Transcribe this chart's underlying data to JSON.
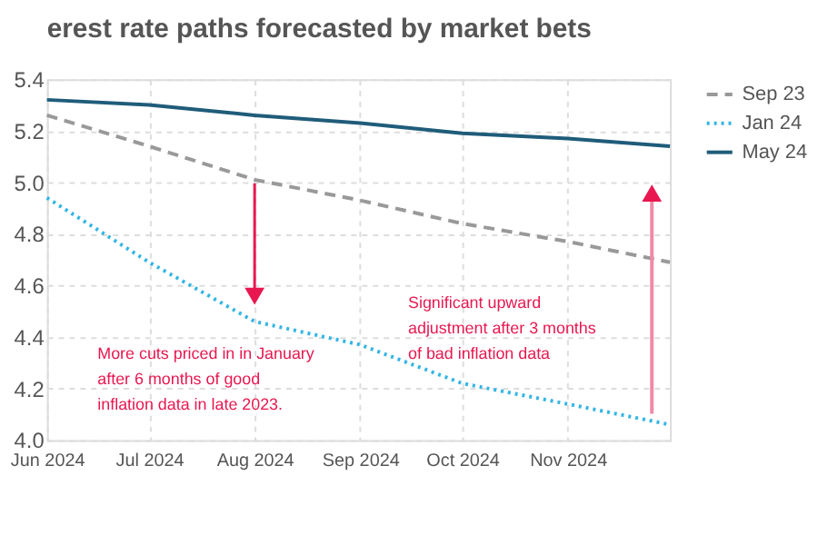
{
  "chart_data": {
    "type": "line",
    "title": "erest rate paths forecasted by market bets",
    "x": [
      "2024-06",
      "2024-07",
      "2024-08",
      "2024-09",
      "2024-10",
      "2024-11",
      "2024-12"
    ],
    "series": [
      {
        "name": "Sep 23",
        "color": "#999999",
        "line_style": "dashed",
        "values": [
          5.26,
          5.14,
          5.01,
          4.93,
          4.84,
          4.77,
          4.69
        ]
      },
      {
        "name": "Jan 24",
        "color": "#33b5e5",
        "line_style": "dotted",
        "values": [
          4.94,
          4.69,
          4.46,
          4.37,
          4.22,
          4.14,
          4.06
        ]
      },
      {
        "name": "May 24",
        "color": "#1f5c7a",
        "line_style": "solid",
        "values": [
          5.32,
          5.3,
          5.26,
          5.23,
          5.19,
          5.17,
          5.14
        ]
      }
    ],
    "xlim": [
      "2024-06",
      "2024-12"
    ],
    "xticks": [
      {
        "value": "2024-06",
        "label": "Jun 2024"
      },
      {
        "value": "2024-07",
        "label": "Jul 2024"
      },
      {
        "value": "2024-08",
        "label": "Aug 2024"
      },
      {
        "value": "2024-09",
        "label": "Sep 2024"
      },
      {
        "value": "2024-10",
        "label": "Oct 2024"
      },
      {
        "value": "2024-11",
        "label": "Nov 2024"
      }
    ],
    "ylim": [
      4.0,
      5.4
    ],
    "yticks": [
      {
        "value": 4.0,
        "label": "4.0"
      },
      {
        "value": 4.2,
        "label": "4.2"
      },
      {
        "value": 4.4,
        "label": "4.4"
      },
      {
        "value": 4.6,
        "label": "4.6"
      },
      {
        "value": 4.8,
        "label": "4.8"
      },
      {
        "value": 5.0,
        "label": "5.0"
      },
      {
        "value": 5.2,
        "label": "5.2"
      },
      {
        "value": 5.4,
        "label": "5.4"
      }
    ],
    "grid": true,
    "legend": "right",
    "annotations": [
      "More cuts priced in in January\nafter 6 months of good\ninflation data in late 2023.",
      "Significant upward\nadjustment after 3 months\nof bad inflation data"
    ]
  }
}
